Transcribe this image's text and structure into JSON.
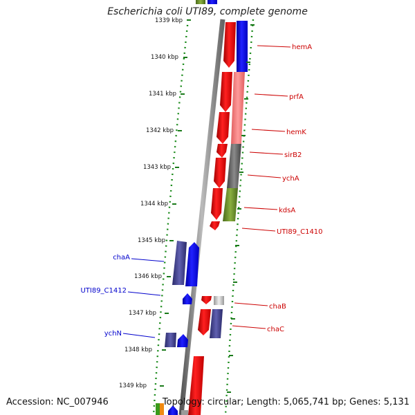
{
  "title": "Escherichia coli UTI89, complete genome",
  "footer": {
    "accession": "Accession: NC_007946",
    "topology": "Topology: circular; Length: 5,065,741 bp; Genes: 5,131"
  },
  "ticks": [
    "1339 kbp",
    "1340 kbp",
    "1341 kbp",
    "1342 kbp",
    "1343 kbp",
    "1344 kbp",
    "1345 kbp",
    "1346 kbp",
    "1347 kbp",
    "1348 kbp",
    "1349 kbp"
  ],
  "genes_right": [
    "hemA",
    "prfA",
    "hemK",
    "sirB2",
    "ychA",
    "kdsA",
    "UTI89_C1410",
    "chaB",
    "chaC"
  ],
  "genes_left": [
    "chaA",
    "UTI89_C1412",
    "ychN"
  ],
  "colors": {
    "forward": "#ff0000",
    "reverse": "#0000ff",
    "label_right": "#cc0000",
    "label_left": "#0000cc",
    "tick": "#1a7a1a",
    "dots": "#1a8a1a"
  }
}
